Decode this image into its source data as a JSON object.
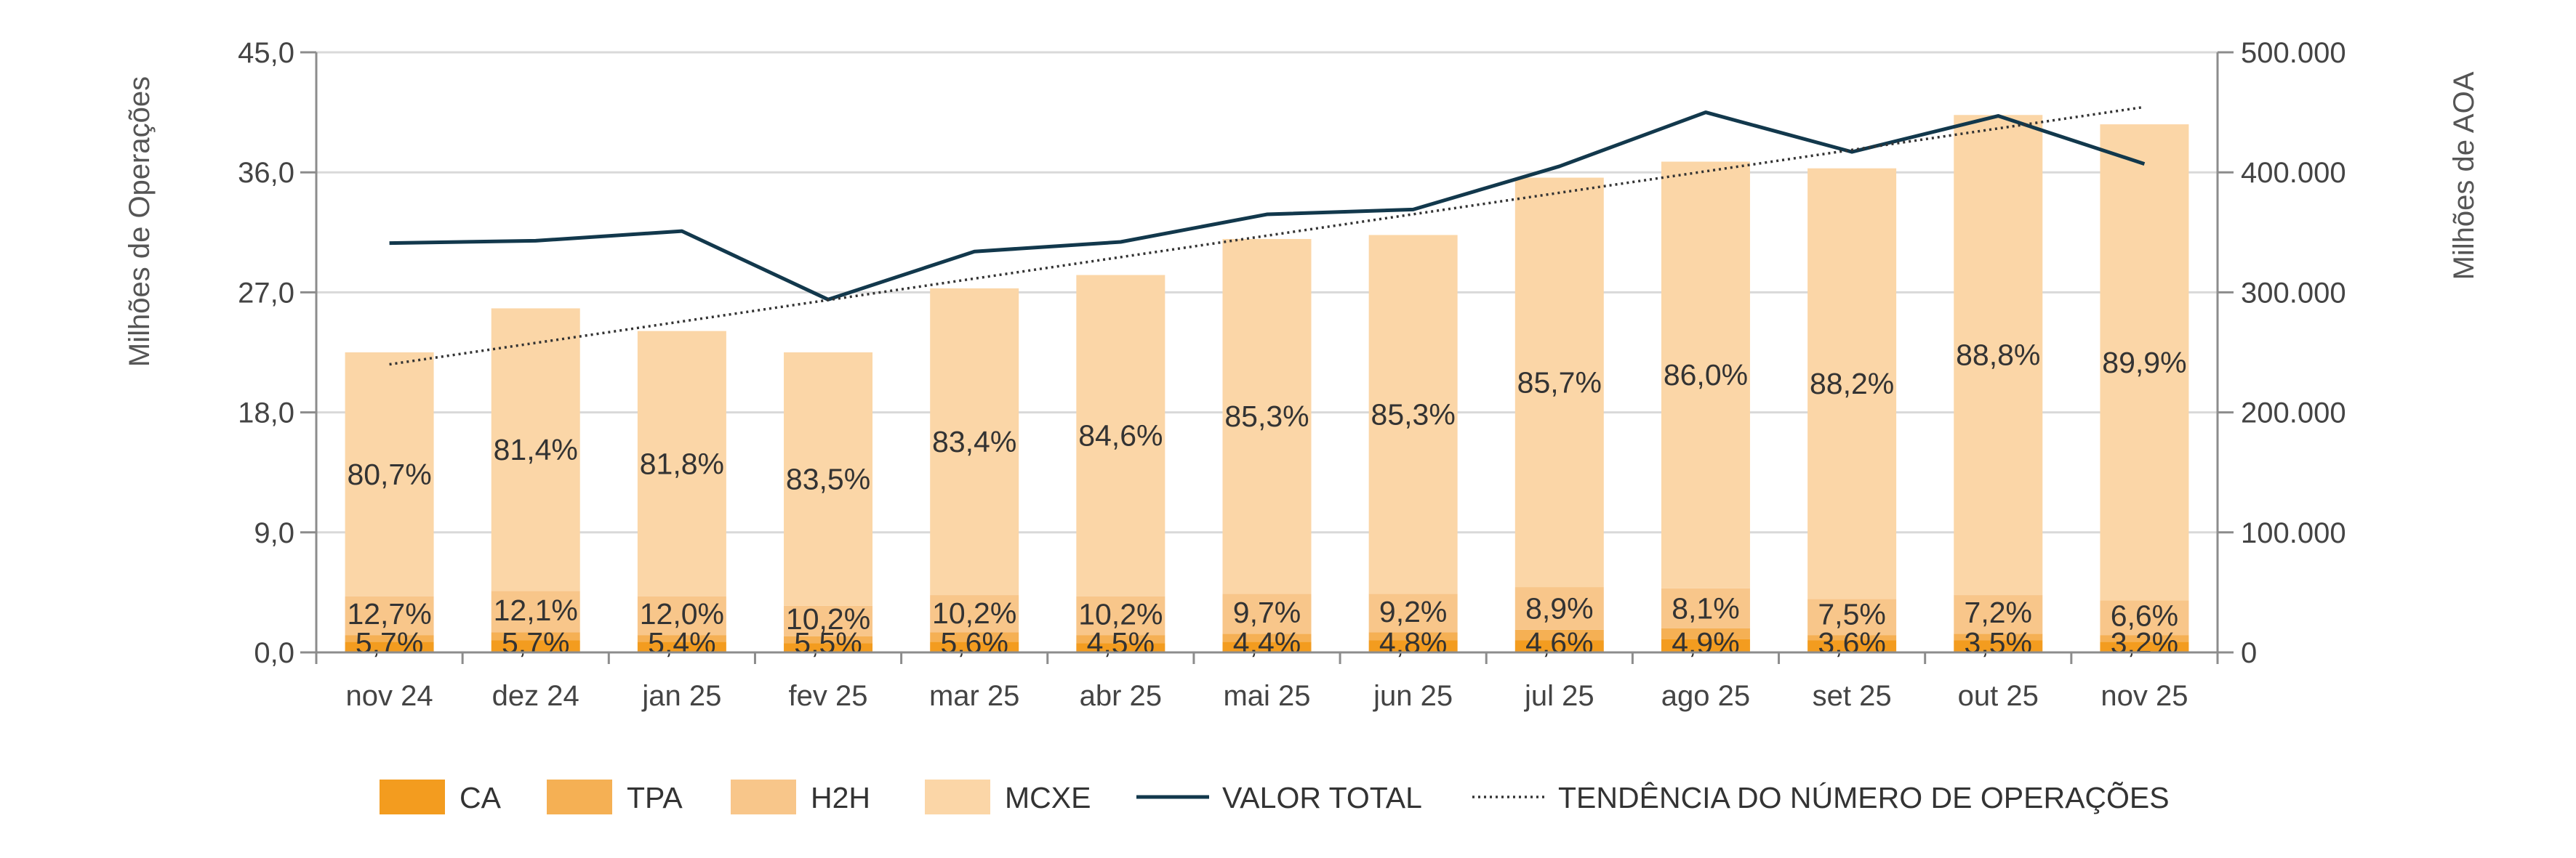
{
  "chart_data": {
    "type": "bar",
    "stacked": true,
    "categories": [
      "nov 24",
      "dez 24",
      "jan 25",
      "fev 25",
      "mar 25",
      "abr 25",
      "mai 25",
      "jun 25",
      "jul 25",
      "ago 25",
      "set 25",
      "out 25",
      "nov 25"
    ],
    "totals": [
      22.7,
      26.0,
      24.3,
      22.8,
      27.6,
      28.5,
      31.2,
      31.5,
      35.8,
      37.2,
      36.6,
      40.5,
      39.7
    ],
    "series": [
      {
        "name": "CA",
        "color": "#F39C1F",
        "values": [
          0.8,
          0.9,
          0.8,
          0.7,
          0.8,
          0.7,
          0.8,
          0.9,
          0.9,
          1.0,
          0.9,
          0.9,
          0.8
        ]
      },
      {
        "name": "TPA",
        "color": "#F5B054",
        "values": [
          0.5,
          0.6,
          0.5,
          0.5,
          0.7,
          0.6,
          0.6,
          0.6,
          0.8,
          0.8,
          0.4,
          0.5,
          0.5
        ]
      },
      {
        "name": "H2H",
        "color": "#F8C68A",
        "values": [
          2.9,
          3.1,
          2.9,
          2.3,
          2.8,
          2.9,
          3.0,
          2.9,
          3.2,
          3.0,
          2.7,
          2.9,
          2.6
        ]
      },
      {
        "name": "MCXE",
        "color": "#FBD6A7",
        "values": [
          18.3,
          21.2,
          19.9,
          19.0,
          23.0,
          24.1,
          26.6,
          26.9,
          30.7,
          32.0,
          32.3,
          36.0,
          35.7
        ]
      }
    ],
    "series_labels": {
      "CA": [
        "5,7%",
        "5,7%",
        "5,4%",
        "5,5%",
        "5,6%",
        "4,5%",
        "4,4%",
        "4,8%",
        "4,6%",
        "4,9%",
        "3,6%",
        "3,5%",
        "3,2%"
      ],
      "H2H": [
        "12,7%",
        "12,1%",
        "12,0%",
        "10,2%",
        "10,2%",
        "10,2%",
        "9,7%",
        "9,2%",
        "8,9%",
        "8,1%",
        "7,5%",
        "7,2%",
        "6,6%"
      ],
      "MCXE": [
        "80,7%",
        "81,4%",
        "81,8%",
        "83,5%",
        "83,4%",
        "84,6%",
        "85,3%",
        "85,3%",
        "85,7%",
        "86,0%",
        "88,2%",
        "88,8%",
        "89,9%"
      ]
    },
    "line_series": {
      "name": "VALOR TOTAL",
      "color": "#12384C",
      "axis": "right",
      "values": [
        341000,
        343000,
        351000,
        294000,
        334000,
        342000,
        365000,
        369000,
        405000,
        450000,
        417000,
        447000,
        407000
      ]
    },
    "trend_series": {
      "name": "TENDÊNCIA DO NÚMERO DE OPERAÇÕES",
      "color": "#333333",
      "start": 21.6,
      "end": 40.9
    },
    "y_left": {
      "title": "Milhões de Operações",
      "range": [
        0,
        45
      ],
      "ticks": [
        "0,0",
        "9,0",
        "18,0",
        "27,0",
        "36,0",
        "45,0"
      ]
    },
    "y_right": {
      "title": "Milhões de AOA",
      "range": [
        0,
        500000
      ],
      "ticks": [
        "0",
        "100.000",
        "200.000",
        "300.000",
        "400.000",
        "500.000"
      ]
    },
    "grid": true,
    "legend": {
      "position": "bottom",
      "items": [
        {
          "label": "CA",
          "kind": "bar",
          "color": "#F39C1F"
        },
        {
          "label": "TPA",
          "kind": "bar",
          "color": "#F5B054"
        },
        {
          "label": "H2H",
          "kind": "bar",
          "color": "#F8C68A"
        },
        {
          "label": "MCXE",
          "kind": "bar",
          "color": "#FBD6A7"
        },
        {
          "label": "VALOR TOTAL",
          "kind": "line",
          "color": "#12384C"
        },
        {
          "label": "TENDÊNCIA DO NÚMERO DE OPERAÇÕES",
          "kind": "dotted",
          "color": "#333333"
        }
      ]
    }
  }
}
